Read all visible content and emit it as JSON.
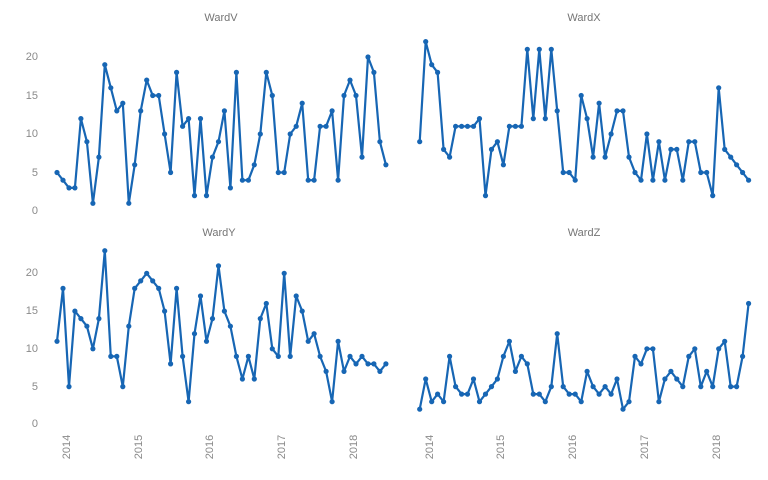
{
  "text_color": "#8a8a8a",
  "title_color": "#757575",
  "chart_data": [
    {
      "type": "line",
      "title": "WardV",
      "frequency": "monthly",
      "start_month": "2013-11",
      "end_month": "2018-06",
      "ylim": [
        0,
        22
      ],
      "y_ticks": [
        20,
        15,
        10,
        5,
        0
      ],
      "x_tick_years": [
        "2014",
        "2015",
        "2016",
        "2017",
        "2018"
      ],
      "show_y_labels": true,
      "show_x_labels": false,
      "line_color": "#1766b4",
      "values": [
        5,
        4,
        3,
        3,
        12,
        9,
        1,
        7,
        19,
        16,
        13,
        14,
        1,
        6,
        13,
        17,
        15,
        15,
        10,
        5,
        18,
        11,
        12,
        2,
        12,
        2,
        7,
        9,
        13,
        3,
        18,
        4,
        4,
        6,
        10,
        18,
        15,
        5,
        5,
        10,
        11,
        14,
        4,
        4,
        11,
        11,
        13,
        4,
        15,
        17,
        15,
        7,
        20,
        18,
        9,
        6
      ]
    },
    {
      "type": "line",
      "title": "WardX",
      "frequency": "monthly",
      "start_month": "2013-11",
      "end_month": "2018-06",
      "ylim": [
        0,
        22
      ],
      "y_ticks": [
        20,
        15,
        10,
        5,
        0
      ],
      "x_tick_years": [
        "2014",
        "2015",
        "2016",
        "2017",
        "2018"
      ],
      "show_y_labels": false,
      "show_x_labels": false,
      "line_color": "#1766b4",
      "values": [
        9,
        22,
        19,
        18,
        8,
        7,
        11,
        11,
        11,
        11,
        12,
        2,
        8,
        9,
        6,
        11,
        11,
        11,
        21,
        12,
        21,
        12,
        21,
        13,
        5,
        5,
        4,
        15,
        12,
        7,
        14,
        7,
        10,
        13,
        13,
        7,
        5,
        4,
        10,
        4,
        9,
        4,
        8,
        8,
        4,
        9,
        9,
        5,
        5,
        2,
        16,
        8,
        7,
        6,
        5,
        4
      ]
    },
    {
      "type": "line",
      "title": "WardY",
      "frequency": "monthly",
      "start_month": "2013-11",
      "end_month": "2018-06",
      "ylim": [
        0,
        23
      ],
      "y_ticks": [
        20,
        15,
        10,
        5,
        0
      ],
      "x_tick_years": [
        "2014",
        "2015",
        "2016",
        "2017",
        "2018"
      ],
      "show_y_labels": true,
      "show_x_labels": true,
      "line_color": "#1766b4",
      "values": [
        11,
        18,
        5,
        15,
        14,
        13,
        10,
        14,
        23,
        9,
        9,
        5,
        13,
        18,
        19,
        20,
        19,
        18,
        15,
        8,
        18,
        9,
        3,
        12,
        17,
        11,
        14,
        21,
        15,
        13,
        9,
        6,
        9,
        6,
        14,
        16,
        10,
        9,
        20,
        9,
        17,
        15,
        11,
        12,
        9,
        7,
        3,
        11,
        7,
        9,
        8,
        9,
        8,
        8,
        7,
        8
      ]
    },
    {
      "type": "line",
      "title": "WardZ",
      "frequency": "monthly",
      "start_month": "2013-11",
      "end_month": "2018-06",
      "ylim": [
        0,
        17
      ],
      "y_ticks": [
        20,
        15,
        10,
        5,
        0
      ],
      "x_tick_years": [
        "2014",
        "2015",
        "2016",
        "2017",
        "2018"
      ],
      "show_y_labels": false,
      "show_x_labels": true,
      "line_color": "#1766b4",
      "values": [
        2,
        6,
        3,
        4,
        3,
        9,
        5,
        4,
        4,
        6,
        3,
        4,
        5,
        6,
        9,
        11,
        7,
        9,
        8,
        4,
        4,
        3,
        5,
        12,
        5,
        4,
        4,
        3,
        7,
        5,
        4,
        5,
        4,
        6,
        2,
        3,
        9,
        8,
        10,
        10,
        3,
        6,
        7,
        6,
        5,
        9,
        10,
        5,
        7,
        5,
        10,
        11,
        5,
        5,
        9,
        16
      ]
    }
  ]
}
